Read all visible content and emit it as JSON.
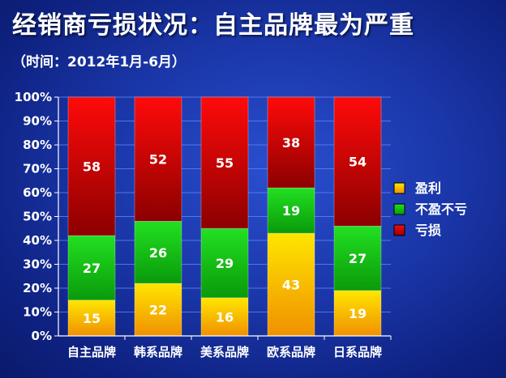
{
  "page": {
    "title": "经销商亏损状况：自主品牌最为严重",
    "subtitle": "（时间：2012年1月-6月）"
  },
  "chart_data": {
    "type": "bar",
    "stacked": true,
    "categories": [
      "自主品牌",
      "韩系品牌",
      "美系品牌",
      "欧系品牌",
      "日系品牌"
    ],
    "series": [
      {
        "name": "盈利",
        "values": [
          15,
          22,
          16,
          43,
          19
        ],
        "color": "#f5b800"
      },
      {
        "name": "不盈不亏",
        "values": [
          27,
          26,
          29,
          19,
          27
        ],
        "color": "#12c412"
      },
      {
        "name": "亏损",
        "values": [
          58,
          52,
          55,
          38,
          54
        ],
        "color": "#d40000"
      }
    ],
    "ylim": [
      0,
      100
    ],
    "yticks": [
      "0%",
      "10%",
      "20%",
      "30%",
      "40%",
      "50%",
      "60%",
      "70%",
      "80%",
      "90%",
      "100%"
    ],
    "grid": true,
    "legend_position": "right"
  }
}
